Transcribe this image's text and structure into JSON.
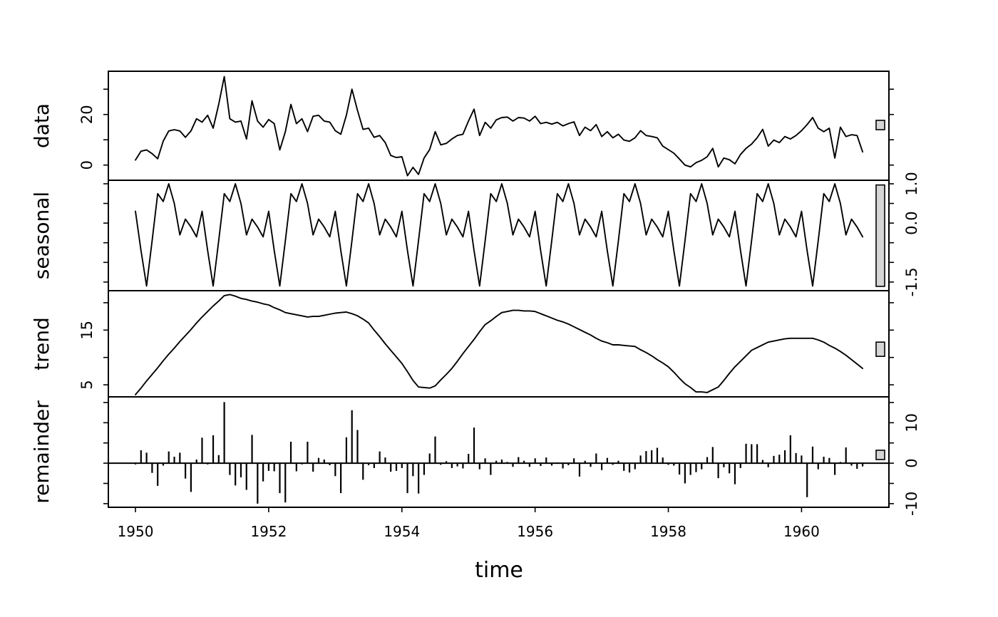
{
  "figure": {
    "kind": "stl_decomposition_plot",
    "background": "#ffffff",
    "line_color": "#000000",
    "scale_bar_fill": "#d6d6d6",
    "x_axis_label": "time"
  },
  "chart_data": {
    "type": "line",
    "subtype": "stl-decomposition (data / seasonal / trend / remainder)",
    "title": "",
    "xlabel": "time",
    "x_start_year": 1950,
    "frequency": 12,
    "n_obs": 132,
    "x_tick_labels": [
      "1950",
      "1952",
      "1954",
      "1956",
      "1958",
      "1960"
    ],
    "x_tick_years": [
      1950,
      1952,
      1954,
      1956,
      1958,
      1960
    ],
    "xlim": [
      1949.593,
      1961.312
    ],
    "grid": "off",
    "legend": "none",
    "panels": [
      {
        "name": "data",
        "type": "line",
        "ylim": [
          -6.0,
          37.1
        ],
        "yticks": [
          0,
          10,
          20,
          30
        ],
        "ytick_labels": [
          "0",
          "",
          "20",
          ""
        ],
        "label_side": "left",
        "scale_bar_range": [
          14.0,
          17.7
        ]
      },
      {
        "name": "seasonal",
        "type": "line",
        "ylim": [
          -1.72,
          1.09
        ],
        "yticks": [
          1.0,
          0.5,
          0.0,
          -0.5,
          -1.0,
          -1.5
        ],
        "ytick_labels": [
          "1.0",
          "",
          "0.0",
          "",
          "",
          "-1.5"
        ],
        "label_side": "right",
        "scale_bar_range": [
          -1.61,
          0.97
        ]
      },
      {
        "name": "trend",
        "type": "line",
        "ylim": [
          2.8,
          22.2
        ],
        "yticks": [
          5,
          10,
          15,
          20
        ],
        "ytick_labels": [
          "5",
          "",
          "15",
          ""
        ],
        "label_side": "left",
        "scale_bar_range": [
          10.2,
          12.8
        ]
      },
      {
        "name": "remainder",
        "type": "vertical-segments-from-zero",
        "ylim": [
          -10.9,
          16.4
        ],
        "yticks": [
          -10,
          -5,
          0,
          5,
          10,
          15
        ],
        "ytick_labels": [
          "-10",
          "",
          "0",
          "",
          "10",
          ""
        ],
        "label_side": "right",
        "scale_bar_range": [
          0.9,
          3.2
        ]
      }
    ],
    "series": {
      "data": [
        2.0,
        5.5,
        6.0,
        4.5,
        2.5,
        9.5,
        13.5,
        14.0,
        13.5,
        11.0,
        13.5,
        18.3,
        17.0,
        19.7,
        14.6,
        24.0,
        35.0,
        18.3,
        17.0,
        17.4,
        10.3,
        25.4,
        17.4,
        15.0,
        18.0,
        16.4,
        6.0,
        13.2,
        24.0,
        16.4,
        18.3,
        13.2,
        19.3,
        19.7,
        17.4,
        17.0,
        13.6,
        12.2,
        19.7,
        30.0,
        21.6,
        14.1,
        14.6,
        11.0,
        11.7,
        8.9,
        3.8,
        3.0,
        3.3,
        -4.2,
        -0.9,
        -3.7,
        2.8,
        6.1,
        13.2,
        8.0,
        8.6,
        10.3,
        11.7,
        12.2,
        17.4,
        22.1,
        11.7,
        16.9,
        14.6,
        17.9,
        18.8,
        19.0,
        17.4,
        18.8,
        18.6,
        17.4,
        19.3,
        16.4,
        16.9,
        16.2,
        16.9,
        15.5,
        16.4,
        17.1,
        11.7,
        15.0,
        13.6,
        16.0,
        11.3,
        13.2,
        10.8,
        12.2,
        9.9,
        9.4,
        10.8,
        13.6,
        11.7,
        11.3,
        10.8,
        7.5,
        6.1,
        4.7,
        2.4,
        0.0,
        -0.7,
        1.0,
        1.9,
        3.3,
        6.6,
        -0.7,
        2.8,
        2.1,
        0.5,
        4.2,
        6.6,
        8.3,
        10.8,
        14.1,
        7.5,
        9.9,
        8.9,
        11.3,
        10.3,
        11.7,
        13.6,
        16.0,
        18.8,
        14.6,
        13.2,
        14.6,
        2.8,
        15.0,
        11.3,
        12.0,
        11.7,
        5.2
      ],
      "seasonal_monthly_pattern": [
        0.3,
        -0.7,
        -1.6,
        -0.45,
        0.75,
        0.55,
        1.0,
        0.5,
        -0.3,
        0.1,
        -0.1,
        -0.35
      ],
      "seasonal_note": "periodic seasonal component; pattern repeats for all 11 years (132 points)",
      "trend": [
        3.2,
        4.4,
        5.7,
        6.9,
        8.1,
        9.4,
        10.6,
        11.7,
        12.9,
        14.0,
        15.1,
        16.3,
        17.4,
        18.4,
        19.4,
        20.3,
        21.3,
        21.5,
        21.2,
        20.8,
        20.6,
        20.3,
        20.1,
        19.8,
        19.6,
        19.1,
        18.7,
        18.2,
        18.0,
        17.8,
        17.6,
        17.4,
        17.5,
        17.5,
        17.7,
        17.9,
        18.1,
        18.2,
        18.3,
        18.0,
        17.6,
        17.0,
        16.3,
        15.0,
        13.8,
        12.5,
        11.3,
        10.1,
        8.9,
        7.4,
        5.8,
        4.6,
        4.5,
        4.4,
        4.8,
        5.9,
        6.9,
        8.0,
        9.3,
        10.7,
        12.0,
        13.3,
        14.7,
        16.0,
        16.7,
        17.5,
        18.2,
        18.4,
        18.6,
        18.6,
        18.5,
        18.5,
        18.4,
        18.0,
        17.6,
        17.2,
        16.8,
        16.5,
        16.1,
        15.6,
        15.1,
        14.6,
        14.1,
        13.5,
        13.0,
        12.7,
        12.3,
        12.3,
        12.2,
        12.1,
        12.0,
        11.4,
        10.9,
        10.3,
        9.6,
        9.0,
        8.3,
        7.3,
        6.2,
        5.2,
        4.5,
        3.7,
        3.7,
        3.6,
        4.1,
        4.6,
        5.8,
        7.1,
        8.3,
        9.3,
        10.3,
        11.3,
        11.8,
        12.3,
        12.8,
        13.0,
        13.2,
        13.4,
        13.5,
        13.5,
        13.5,
        13.5,
        13.5,
        13.2,
        12.8,
        12.2,
        11.7,
        11.1,
        10.4,
        9.6,
        8.8,
        8.0
      ],
      "remainder": [
        -0.3,
        3.2,
        2.6,
        -2.4,
        -5.6,
        -0.6,
        2.9,
        1.6,
        2.6,
        -3.8,
        -7.1,
        0.9,
        6.3,
        -0.3,
        6.9,
        2.0,
        15.1,
        -2.9,
        -5.5,
        -3.5,
        -6.6,
        7.0,
        -10.0,
        -4.5,
        -1.9,
        -2.0,
        -7.4,
        -9.7,
        5.3,
        -2.0,
        -0.3,
        5.3,
        -2.1,
        1.3,
        0.9,
        -0.5,
        -3.2,
        -7.4,
        6.4,
        13.1,
        8.2,
        -4.1,
        -0.5,
        -1.2,
        2.9,
        1.4,
        -2.1,
        -1.9,
        -1.2,
        -7.4,
        -3.2,
        -7.5,
        -2.9,
        2.4,
        6.6,
        -0.4,
        0.5,
        -1.2,
        -0.8,
        -1.3,
        2.3,
        8.8,
        -1.5,
        1.2,
        -2.9,
        0.6,
        0.9,
        0.3,
        -0.9,
        1.5,
        0.6,
        -0.9,
        1.2,
        -0.7,
        1.4,
        -0.6,
        0.2,
        -1.3,
        -0.5,
        1.2,
        -3.3,
        0.6,
        -0.9,
        2.4,
        -1.7,
        1.3,
        -0.4,
        0.6,
        -1.9,
        -2.3,
        -1.5,
        1.9,
        3.0,
        3.2,
        3.8,
        1.4,
        -0.4,
        -0.6,
        -2.8,
        -5.0,
        -2.9,
        -2.2,
        -1.5,
        1.5,
        4.0,
        -3.7,
        -1.0,
        -2.5,
        -5.2,
        -1.2,
        4.8,
        4.7,
        4.7,
        0.8,
        -1.0,
        1.8,
        2.1,
        3.2,
        6.9,
        2.5,
        1.9,
        -8.4,
        4.1,
        -1.5,
        1.6,
        1.3,
        -2.9,
        0.3,
        3.9,
        -0.6,
        -1.4,
        -0.8
      ]
    }
  }
}
